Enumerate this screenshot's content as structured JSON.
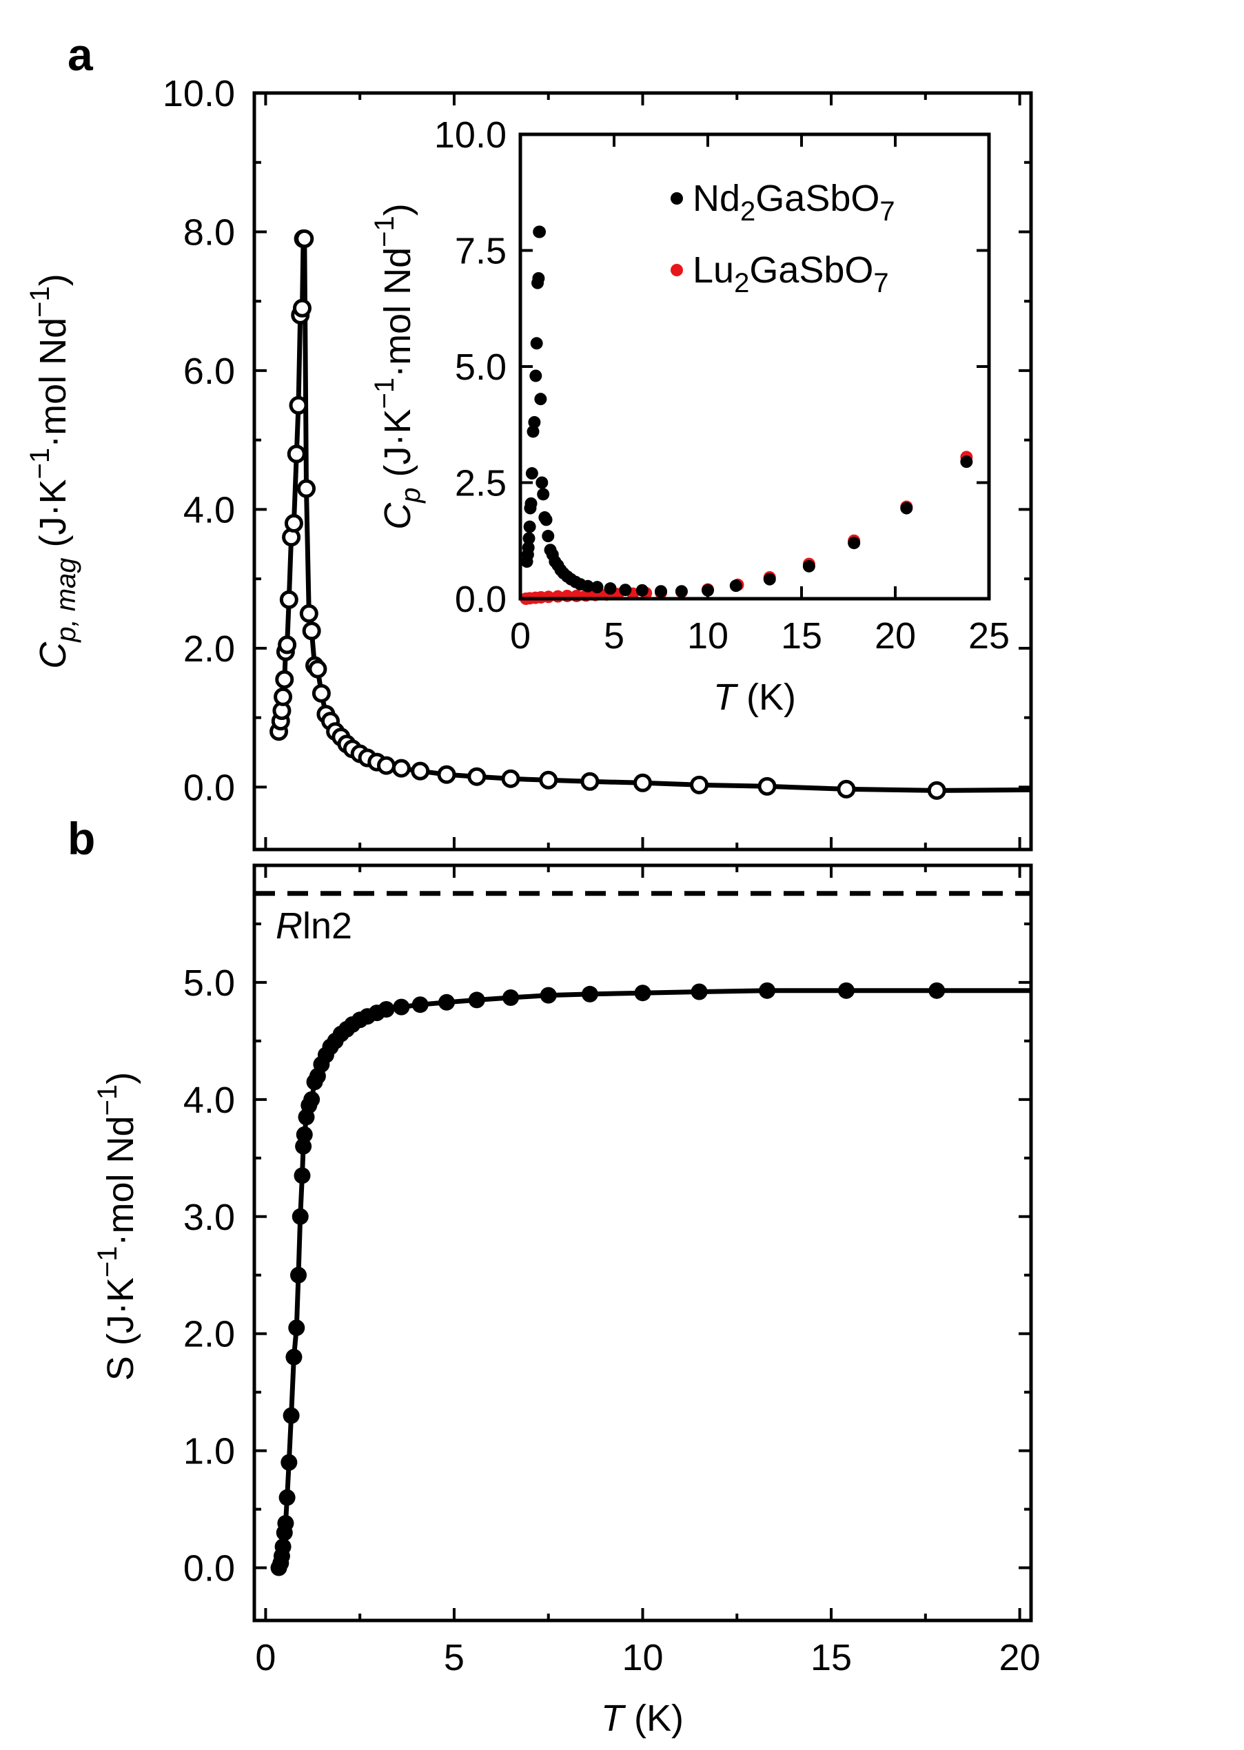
{
  "chart_data": [
    {
      "id": "panel_a",
      "panel_label": "a",
      "type": "line",
      "ylabel": "C_p,mag (J·K^-1·mol Nd^-1)",
      "ylabel_parts": {
        "sym": "C",
        "sub": "p, mag",
        "unit_a": " (J·K",
        "sup": "−1",
        "unit_b": "·mol Nd",
        "close": ")"
      },
      "xlim": [
        -0.3,
        20.3
      ],
      "ylim": [
        -0.9,
        10.0
      ],
      "yticks": [
        0.0,
        2.0,
        4.0,
        6.0,
        8.0,
        10.0
      ],
      "ytick_labels": [
        "0.0",
        "2.0",
        "4.0",
        "6.0",
        "8.0",
        "10.0"
      ],
      "xticks": [
        0,
        5,
        10,
        15,
        20
      ],
      "series": [
        {
          "name": "Cp,mag",
          "marker": "open-circle",
          "x": [
            0.35,
            0.4,
            0.43,
            0.46,
            0.5,
            0.53,
            0.57,
            0.62,
            0.68,
            0.75,
            0.82,
            0.87,
            0.92,
            0.97,
            1.0,
            1.03,
            1.08,
            1.15,
            1.22,
            1.3,
            1.38,
            1.48,
            1.6,
            1.72,
            1.85,
            2.0,
            2.15,
            2.3,
            2.5,
            2.7,
            2.95,
            3.2,
            3.6,
            4.1,
            4.8,
            5.6,
            6.5,
            7.5,
            8.6,
            10.0,
            11.5,
            13.3,
            15.4,
            17.8,
            20.3
          ],
          "y": [
            0.8,
            0.95,
            1.1,
            1.3,
            1.55,
            1.95,
            2.05,
            2.7,
            3.6,
            3.8,
            4.8,
            5.5,
            6.8,
            6.9,
            7.9,
            7.9,
            4.3,
            2.5,
            2.25,
            1.75,
            1.7,
            1.35,
            1.05,
            0.95,
            0.8,
            0.72,
            0.62,
            0.55,
            0.48,
            0.42,
            0.36,
            0.31,
            0.27,
            0.23,
            0.18,
            0.15,
            0.12,
            0.1,
            0.08,
            0.06,
            0.03,
            0.01,
            -0.03,
            -0.05,
            -0.04
          ]
        }
      ],
      "inset": {
        "type": "scatter",
        "xlabel": "T (K)",
        "ylabel": "C_p (J·K^-1·mol Nd^-1)",
        "ylabel_parts": {
          "sym": "C",
          "sub": "p",
          "unit_a": " (J·K",
          "sup": "−1",
          "unit_b": "·mol Nd",
          "close": ")"
        },
        "xlabel_parts": {
          "sym": "T",
          "unit": " (K)"
        },
        "xlim": [
          0,
          25
        ],
        "ylim": [
          0,
          10
        ],
        "xticks": [
          0,
          5,
          10,
          15,
          20,
          25
        ],
        "xtick_labels": [
          "0",
          "5",
          "10",
          "15",
          "20",
          "25"
        ],
        "yticks": [
          0.0,
          2.5,
          5.0,
          7.5,
          10.0
        ],
        "ytick_labels": [
          "0.0",
          "2.5",
          "5.0",
          "7.5",
          "10.0"
        ],
        "legend_position": "top-right",
        "series": [
          {
            "name": "Nd2GaSbO7",
            "legend_parts": {
              "a": "Nd",
              "s1": "2",
              "b": "GaSbO",
              "s2": "7"
            },
            "color": "#000000",
            "x": [
              0.35,
              0.4,
              0.43,
              0.46,
              0.5,
              0.53,
              0.57,
              0.62,
              0.68,
              0.75,
              0.82,
              0.87,
              0.92,
              0.97,
              1.0,
              1.03,
              1.08,
              1.15,
              1.22,
              1.3,
              1.38,
              1.48,
              1.6,
              1.72,
              1.85,
              2.0,
              2.15,
              2.3,
              2.5,
              2.7,
              2.95,
              3.2,
              3.6,
              4.1,
              4.8,
              5.6,
              6.5,
              7.5,
              8.6,
              10.0,
              11.5,
              13.3,
              15.4,
              17.8,
              20.6,
              23.8
            ],
            "y": [
              0.8,
              0.95,
              1.1,
              1.3,
              1.55,
              1.95,
              2.05,
              2.7,
              3.6,
              3.8,
              4.8,
              5.5,
              6.8,
              6.9,
              7.9,
              7.9,
              4.3,
              2.5,
              2.25,
              1.75,
              1.7,
              1.35,
              1.05,
              0.95,
              0.8,
              0.72,
              0.62,
              0.55,
              0.48,
              0.42,
              0.36,
              0.31,
              0.27,
              0.25,
              0.22,
              0.19,
              0.18,
              0.16,
              0.16,
              0.18,
              0.28,
              0.42,
              0.7,
              1.2,
              1.95,
              2.95
            ]
          },
          {
            "name": "Lu2GaSbO7",
            "legend_parts": {
              "a": "Lu",
              "s1": "2",
              "b": "GaSbO",
              "s2": "7"
            },
            "color": "#e8161b",
            "x": [
              0.3,
              0.5,
              0.8,
              1.1,
              1.5,
              2.0,
              2.5,
              3.0,
              3.5,
              4.0,
              4.6,
              5.2,
              6.0,
              6.7,
              7.5,
              8.6,
              10.0,
              11.6,
              13.3,
              15.4,
              17.8,
              20.6,
              23.8
            ],
            "y": [
              0.0,
              0.01,
              0.02,
              0.03,
              0.04,
              0.05,
              0.06,
              0.06,
              0.07,
              0.08,
              0.09,
              0.1,
              0.11,
              0.12,
              0.13,
              0.15,
              0.2,
              0.3,
              0.46,
              0.75,
              1.25,
              1.98,
              3.05
            ]
          }
        ]
      }
    },
    {
      "id": "panel_b",
      "panel_label": "b",
      "type": "line",
      "xlabel": "T (K)",
      "xlabel_parts": {
        "sym": "T",
        "unit": " (K)"
      },
      "ylabel": "S (J·K^-1·mol Nd^-1)",
      "ylabel_parts": {
        "sym": "S",
        "unit_a": " (J·K",
        "sup": "−1",
        "unit_b": "·mol Nd",
        "close": ")"
      },
      "xlim": [
        -0.3,
        20.3
      ],
      "ylim": [
        -0.45,
        6.0
      ],
      "xticks": [
        0,
        5,
        10,
        15,
        20
      ],
      "xtick_labels": [
        "0",
        "5",
        "10",
        "15",
        "20"
      ],
      "yticks": [
        0.0,
        1.0,
        2.0,
        3.0,
        4.0,
        5.0
      ],
      "ytick_labels": [
        "0.0",
        "1.0",
        "2.0",
        "3.0",
        "4.0",
        "5.0"
      ],
      "reference_line": {
        "y": 5.76,
        "label_parts": {
          "sym": "R",
          "rest": "ln2"
        },
        "style": "dashed"
      },
      "series": [
        {
          "name": "S",
          "marker": "filled-circle",
          "x": [
            0.35,
            0.4,
            0.43,
            0.46,
            0.5,
            0.53,
            0.57,
            0.62,
            0.68,
            0.75,
            0.82,
            0.87,
            0.92,
            0.97,
            1.0,
            1.03,
            1.08,
            1.15,
            1.22,
            1.3,
            1.38,
            1.48,
            1.6,
            1.72,
            1.85,
            2.0,
            2.15,
            2.3,
            2.5,
            2.7,
            2.95,
            3.2,
            3.6,
            4.1,
            4.8,
            5.6,
            6.5,
            7.5,
            8.6,
            10.0,
            11.5,
            13.3,
            15.4,
            17.8,
            20.3
          ],
          "y": [
            0.0,
            0.04,
            0.1,
            0.18,
            0.3,
            0.38,
            0.6,
            0.9,
            1.3,
            1.8,
            2.05,
            2.5,
            3.0,
            3.35,
            3.6,
            3.7,
            3.85,
            3.95,
            4.0,
            4.15,
            4.2,
            4.3,
            4.38,
            4.45,
            4.5,
            4.56,
            4.6,
            4.64,
            4.68,
            4.71,
            4.74,
            4.77,
            4.79,
            4.81,
            4.83,
            4.85,
            4.87,
            4.89,
            4.9,
            4.91,
            4.92,
            4.93,
            4.93,
            4.93,
            4.93
          ]
        }
      ]
    }
  ]
}
